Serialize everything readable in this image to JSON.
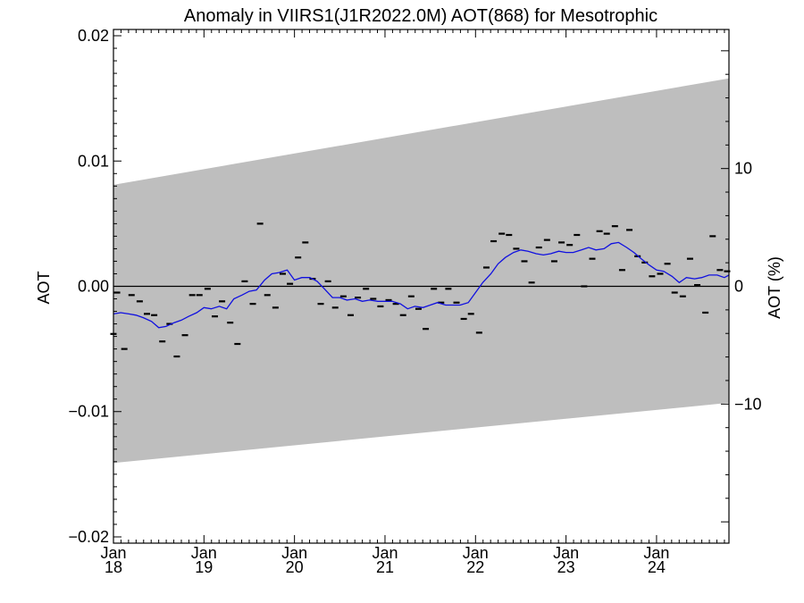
{
  "chart_data": {
    "type": "scatter",
    "title": "Anomaly in VIIRS1(J1R2022.0M) AOT(868) for Mesotrophic",
    "ylabel": "AOT",
    "ylabel_right": "AOT (%)",
    "xlabel": "",
    "ylim": [
      -0.0205,
      0.0205
    ],
    "xlim": [
      2018.0,
      2024.8
    ],
    "y_ticks": [
      {
        "value": 0.02,
        "label": "0.02"
      },
      {
        "value": 0.01,
        "label": "0.01"
      },
      {
        "value": 0.0,
        "label": "0.00"
      },
      {
        "value": -0.01,
        "label": "−0.01"
      },
      {
        "value": -0.02,
        "label": "−0.02"
      }
    ],
    "y2_ticks": [
      {
        "value": 10,
        "label": "10"
      },
      {
        "value": 0,
        "label": "0"
      },
      {
        "value": -10,
        "label": "−10"
      }
    ],
    "y2_scale": 0.00094,
    "x_ticks": [
      {
        "value": 2018,
        "month": "Jan",
        "year": "18"
      },
      {
        "value": 2019,
        "month": "Jan",
        "year": "19"
      },
      {
        "value": 2020,
        "month": "Jan",
        "year": "20"
      },
      {
        "value": 2021,
        "month": "Jan",
        "year": "21"
      },
      {
        "value": 2022,
        "month": "Jan",
        "year": "22"
      },
      {
        "value": 2023,
        "month": "Jan",
        "year": "23"
      },
      {
        "value": 2024,
        "month": "Jan",
        "year": "24"
      }
    ],
    "band": {
      "x": [
        2018.0,
        2024.8
      ],
      "upper": [
        0.0081,
        0.0166
      ],
      "lower": [
        -0.0141,
        -0.0093
      ],
      "color": "#bebebe"
    },
    "zero_line": 0.0,
    "series": [
      {
        "kind": "markers",
        "color": "#000000",
        "points": [
          [
            2018.0,
            -0.0038
          ],
          [
            2018.04,
            -0.0005
          ],
          [
            2018.12,
            -0.005
          ],
          [
            2018.2,
            -0.0007
          ],
          [
            2018.29,
            -0.0012
          ],
          [
            2018.37,
            -0.0022
          ],
          [
            2018.45,
            -0.0023
          ],
          [
            2018.54,
            -0.0044
          ],
          [
            2018.62,
            -0.003
          ],
          [
            2018.7,
            -0.0056
          ],
          [
            2018.79,
            -0.0039
          ],
          [
            2018.87,
            -0.0007
          ],
          [
            2018.95,
            -0.0007
          ],
          [
            2019.04,
            -0.0002
          ],
          [
            2019.12,
            -0.0024
          ],
          [
            2019.2,
            -0.0012
          ],
          [
            2019.29,
            -0.0029
          ],
          [
            2019.37,
            -0.0046
          ],
          [
            2019.45,
            0.0004
          ],
          [
            2019.54,
            -0.0014
          ],
          [
            2019.62,
            0.005
          ],
          [
            2019.7,
            -0.0007
          ],
          [
            2019.79,
            -0.0017
          ],
          [
            2019.87,
            0.001
          ],
          [
            2019.95,
            0.0002
          ],
          [
            2020.04,
            0.0023
          ],
          [
            2020.12,
            0.0035
          ],
          [
            2020.2,
            0.0006
          ],
          [
            2020.29,
            -0.0014
          ],
          [
            2020.37,
            0.0004
          ],
          [
            2020.45,
            -0.0017
          ],
          [
            2020.54,
            -0.0008
          ],
          [
            2020.62,
            -0.0023
          ],
          [
            2020.7,
            -0.0009
          ],
          [
            2020.79,
            -0.0002
          ],
          [
            2020.87,
            -0.001
          ],
          [
            2020.95,
            -0.0016
          ],
          [
            2021.04,
            -0.0011
          ],
          [
            2021.12,
            -0.0014
          ],
          [
            2021.2,
            -0.0023
          ],
          [
            2021.29,
            -0.0008
          ],
          [
            2021.37,
            -0.0018
          ],
          [
            2021.45,
            -0.0034
          ],
          [
            2021.54,
            -0.0002
          ],
          [
            2021.62,
            -0.0013
          ],
          [
            2021.7,
            -0.0002
          ],
          [
            2021.79,
            -0.0013
          ],
          [
            2021.87,
            -0.0026
          ],
          [
            2021.95,
            -0.0022
          ],
          [
            2022.04,
            -0.0037
          ],
          [
            2022.12,
            0.0015
          ],
          [
            2022.2,
            0.0036
          ],
          [
            2022.29,
            0.0042
          ],
          [
            2022.37,
            0.0041
          ],
          [
            2022.45,
            0.003
          ],
          [
            2022.54,
            0.002
          ],
          [
            2022.62,
            0.0003
          ],
          [
            2022.7,
            0.0031
          ],
          [
            2022.79,
            0.0037
          ],
          [
            2022.87,
            0.002
          ],
          [
            2022.95,
            0.0035
          ],
          [
            2023.04,
            0.0033
          ],
          [
            2023.12,
            0.0041
          ],
          [
            2023.2,
            0.0
          ],
          [
            2023.29,
            0.0022
          ],
          [
            2023.37,
            0.0044
          ],
          [
            2023.45,
            0.0042
          ],
          [
            2023.54,
            0.0048
          ],
          [
            2023.62,
            0.0013
          ],
          [
            2023.7,
            0.0045
          ],
          [
            2023.79,
            0.0024
          ],
          [
            2023.87,
            0.0019
          ],
          [
            2023.95,
            0.0008
          ],
          [
            2024.04,
            0.001
          ],
          [
            2024.12,
            0.0018
          ],
          [
            2024.2,
            -0.0005
          ],
          [
            2024.29,
            -0.0008
          ],
          [
            2024.37,
            0.0022
          ],
          [
            2024.45,
            0.0001
          ],
          [
            2024.54,
            -0.0021
          ],
          [
            2024.62,
            0.004
          ],
          [
            2024.7,
            0.0013
          ],
          [
            2024.78,
            0.0012
          ]
        ]
      },
      {
        "kind": "line",
        "color": "#1010e0",
        "points": [
          [
            2018.0,
            -0.0022
          ],
          [
            2018.08,
            -0.0021
          ],
          [
            2018.17,
            -0.0022
          ],
          [
            2018.25,
            -0.0023
          ],
          [
            2018.33,
            -0.0025
          ],
          [
            2018.42,
            -0.0028
          ],
          [
            2018.5,
            -0.0033
          ],
          [
            2018.58,
            -0.0032
          ],
          [
            2018.67,
            -0.0029
          ],
          [
            2018.75,
            -0.0027
          ],
          [
            2018.83,
            -0.0024
          ],
          [
            2018.92,
            -0.0021
          ],
          [
            2019.0,
            -0.0017
          ],
          [
            2019.08,
            -0.0018
          ],
          [
            2019.17,
            -0.0016
          ],
          [
            2019.25,
            -0.0018
          ],
          [
            2019.33,
            -0.001
          ],
          [
            2019.42,
            -0.0007
          ],
          [
            2019.5,
            -0.0004
          ],
          [
            2019.58,
            -0.0003
          ],
          [
            2019.67,
            0.0005
          ],
          [
            2019.75,
            0.001
          ],
          [
            2019.83,
            0.0011
          ],
          [
            2019.92,
            0.0013
          ],
          [
            2020.0,
            0.0005
          ],
          [
            2020.08,
            0.0007
          ],
          [
            2020.17,
            0.0007
          ],
          [
            2020.25,
            0.0004
          ],
          [
            2020.33,
            -0.0002
          ],
          [
            2020.42,
            -0.0009
          ],
          [
            2020.5,
            -0.0009
          ],
          [
            2020.58,
            -0.0011
          ],
          [
            2020.67,
            -0.001
          ],
          [
            2020.75,
            -0.0012
          ],
          [
            2020.83,
            -0.0011
          ],
          [
            2020.92,
            -0.0012
          ],
          [
            2021.0,
            -0.0012
          ],
          [
            2021.08,
            -0.0012
          ],
          [
            2021.17,
            -0.0014
          ],
          [
            2021.25,
            -0.0018
          ],
          [
            2021.33,
            -0.0016
          ],
          [
            2021.42,
            -0.0017
          ],
          [
            2021.5,
            -0.0015
          ],
          [
            2021.58,
            -0.0013
          ],
          [
            2021.67,
            -0.0015
          ],
          [
            2021.75,
            -0.0015
          ],
          [
            2021.83,
            -0.0015
          ],
          [
            2021.92,
            -0.0013
          ],
          [
            2022.0,
            -0.0005
          ],
          [
            2022.08,
            0.0003
          ],
          [
            2022.17,
            0.001
          ],
          [
            2022.25,
            0.0018
          ],
          [
            2022.33,
            0.0023
          ],
          [
            2022.42,
            0.0027
          ],
          [
            2022.5,
            0.0029
          ],
          [
            2022.58,
            0.0028
          ],
          [
            2022.67,
            0.0026
          ],
          [
            2022.75,
            0.0025
          ],
          [
            2022.83,
            0.0026
          ],
          [
            2022.92,
            0.0028
          ],
          [
            2023.0,
            0.0027
          ],
          [
            2023.08,
            0.0027
          ],
          [
            2023.17,
            0.0029
          ],
          [
            2023.25,
            0.0031
          ],
          [
            2023.33,
            0.0029
          ],
          [
            2023.42,
            0.003
          ],
          [
            2023.5,
            0.0034
          ],
          [
            2023.58,
            0.0035
          ],
          [
            2023.67,
            0.0031
          ],
          [
            2023.75,
            0.0027
          ],
          [
            2023.83,
            0.0022
          ],
          [
            2023.92,
            0.0017
          ],
          [
            2024.0,
            0.0013
          ],
          [
            2024.08,
            0.0012
          ],
          [
            2024.17,
            0.0008
          ],
          [
            2024.25,
            0.0003
          ],
          [
            2024.33,
            0.0007
          ],
          [
            2024.42,
            0.0006
          ],
          [
            2024.5,
            0.0007
          ],
          [
            2024.58,
            0.0009
          ],
          [
            2024.67,
            0.0009
          ],
          [
            2024.75,
            0.0007
          ],
          [
            2024.8,
            0.0009
          ]
        ]
      }
    ]
  }
}
